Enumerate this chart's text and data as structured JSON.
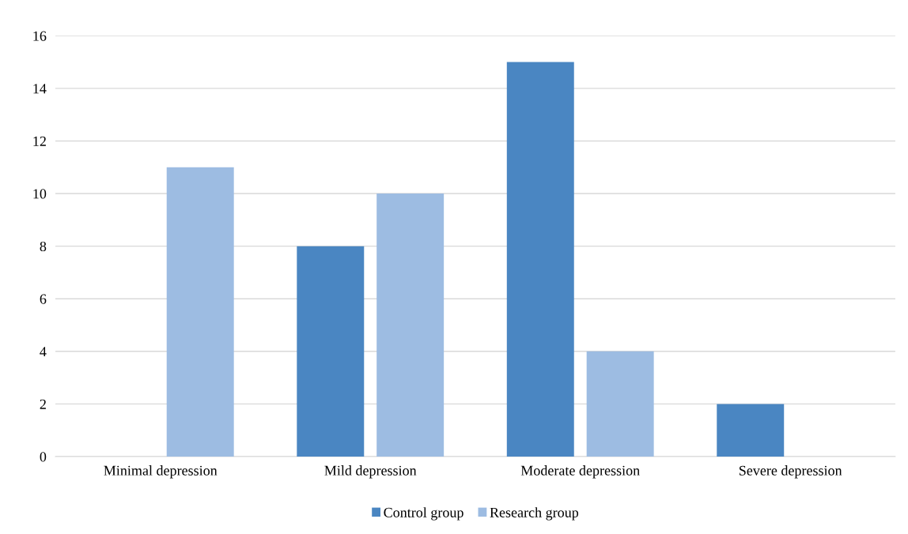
{
  "chart_data": {
    "type": "bar",
    "categories": [
      "Minimal depression",
      "Mild depression",
      "Moderate depression",
      "Severe depression"
    ],
    "series": [
      {
        "name": "Control group",
        "color": "#4a86c2",
        "values": [
          0,
          8,
          15,
          2
        ]
      },
      {
        "name": "Research group",
        "color": "#9dbce2",
        "values": [
          11,
          10,
          4,
          0
        ]
      }
    ],
    "ylim": [
      0,
      16
    ],
    "yticks": [
      0,
      2,
      4,
      6,
      8,
      10,
      12,
      14,
      16
    ],
    "grid": "y",
    "legend": "bottom"
  }
}
